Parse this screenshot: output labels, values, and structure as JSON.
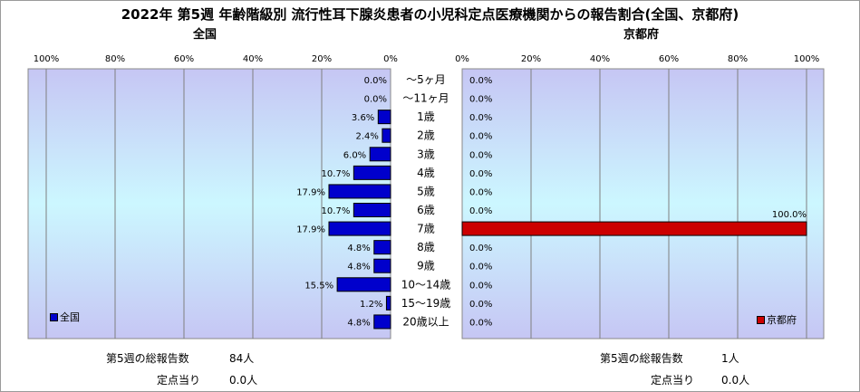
{
  "title": "2022年 第5週 年齢階級別 流行性耳下腺炎患者の小児科定点医療機関からの報告割合(全国、京都府)",
  "left": {
    "panel_title": "全国",
    "legend": "全国",
    "color": "#0000cc",
    "stats": {
      "total_label": "第5週の総報告数",
      "total_value": "84人",
      "per_label": "定点当り",
      "per_value": "0.0人"
    }
  },
  "right": {
    "panel_title": "京都府",
    "legend": "京都府",
    "color": "#cc0000",
    "stats": {
      "total_label": "第5週の総報告数",
      "total_value": "1人",
      "per_label": "定点当り",
      "per_value": "0.0人"
    }
  },
  "chart_data": {
    "type": "bar",
    "orientation": "horizontal-butterfly",
    "categories": [
      "～5ヶ月",
      "～11ヶ月",
      "1歳",
      "2歳",
      "3歳",
      "4歳",
      "5歳",
      "6歳",
      "7歳",
      "8歳",
      "9歳",
      "10～14歳",
      "15～19歳",
      "20歳以上"
    ],
    "series": [
      {
        "name": "全国",
        "values": [
          0.0,
          0.0,
          3.6,
          2.4,
          6.0,
          10.7,
          17.9,
          10.7,
          17.9,
          4.8,
          4.8,
          15.5,
          1.2,
          4.8
        ],
        "labels": [
          "0.0%",
          "0.0%",
          "3.6%",
          "2.4%",
          "6.0%",
          "10.7%",
          "17.9%",
          "10.7%",
          "17.9%",
          "4.8%",
          "4.8%",
          "15.5%",
          "1.2%",
          "4.8%"
        ]
      },
      {
        "name": "京都府",
        "values": [
          0.0,
          0.0,
          0.0,
          0.0,
          0.0,
          0.0,
          0.0,
          0.0,
          100.0,
          0.0,
          0.0,
          0.0,
          0.0,
          0.0
        ],
        "labels": [
          "0.0%",
          "0.0%",
          "0.0%",
          "0.0%",
          "0.0%",
          "0.0%",
          "0.0%",
          "0.0%",
          "100.0%",
          "0.0%",
          "0.0%",
          "0.0%",
          "0.0%",
          "0.0%"
        ]
      }
    ],
    "ticks": [
      "100%",
      "80%",
      "60%",
      "40%",
      "20%",
      "0%"
    ],
    "ticks_right": [
      "0%",
      "20%",
      "40%",
      "60%",
      "80%",
      "100%"
    ],
    "xlim": [
      0,
      100
    ],
    "grid": true,
    "legend_position": "bottom-left / bottom-right"
  }
}
